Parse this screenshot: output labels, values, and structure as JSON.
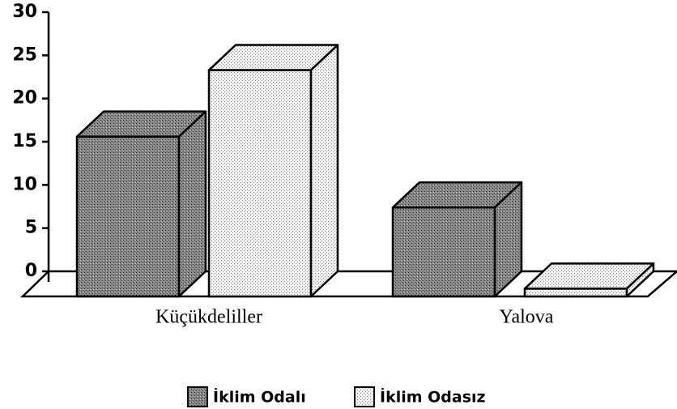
{
  "chart_data": {
    "type": "bar3d",
    "categories": [
      "Küçükdeliller",
      "Yalova"
    ],
    "series": [
      {
        "name": "İklim Odalı",
        "color": "#7a7a7a",
        "values": [
          18.5,
          10.3
        ]
      },
      {
        "name": "İklim Odasız",
        "color": "#e6e6e6",
        "values": [
          26.2,
          0.9
        ]
      }
    ],
    "ylim": [
      0,
      30
    ],
    "yticks": [
      0,
      5,
      10,
      15,
      20,
      25,
      30
    ],
    "legend": "bottom"
  }
}
